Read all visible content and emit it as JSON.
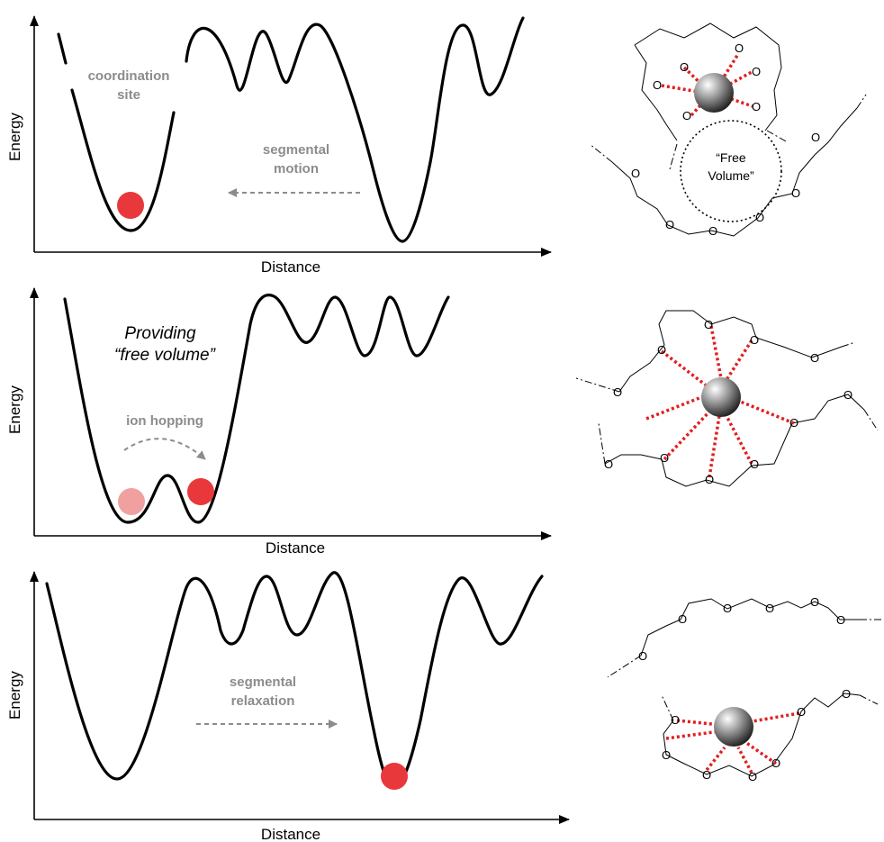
{
  "panels": [
    {
      "energy_label": "Energy",
      "distance_label": "Distance",
      "site_label_line1": "coordination",
      "site_label_line2": "site",
      "motion_label_line1": "segmental",
      "motion_label_line2": "motion"
    },
    {
      "energy_label": "Energy",
      "distance_label": "Distance",
      "providing_line1": "Providing",
      "providing_line2": "“free volume”",
      "hopping_label": "ion hopping"
    },
    {
      "energy_label": "Energy",
      "distance_label": "Distance",
      "relax_label_line1": "segmental",
      "relax_label_line2": "relaxation"
    }
  ],
  "structures": {
    "oxygen_symbol": "O",
    "free_volume_line1": "“Free",
    "free_volume_line2": "Volume”"
  },
  "colors": {
    "ion": "#e8383b",
    "ion_faded": "#f1a0a0",
    "annotation_gray": "#8c8c8c",
    "coordination_bond": "#e02020"
  }
}
